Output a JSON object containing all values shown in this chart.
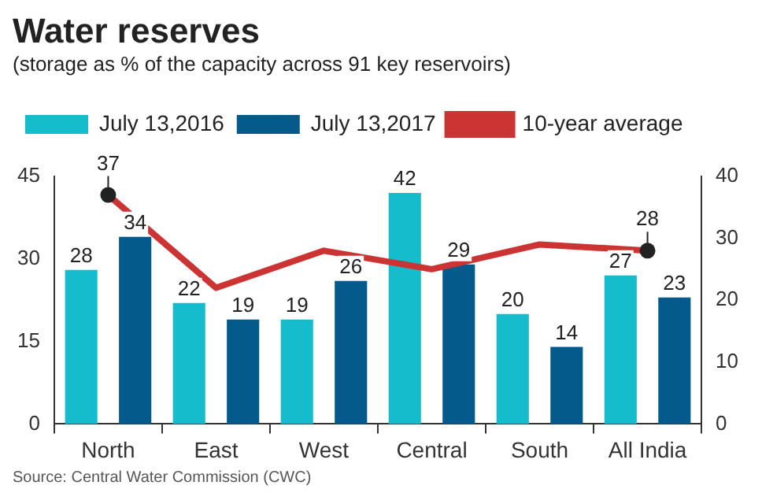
{
  "chart_data": {
    "type": "bar",
    "title": "Water reserves",
    "subtitle": "(storage as % of the capacity across 91 key reservoirs)",
    "categories": [
      "North",
      "East",
      "West",
      "Central",
      "South",
      "All India"
    ],
    "series": [
      {
        "name": "July 13,2016",
        "color": "#14bccc",
        "values": [
          28,
          22,
          19,
          42,
          20,
          27
        ],
        "value_labels": [
          "28",
          "22",
          "19",
          "42",
          "20",
          "27"
        ]
      },
      {
        "name": "July 13,2017",
        "color": "#045a8a",
        "values": [
          34,
          19,
          26,
          29,
          14,
          23
        ],
        "value_labels": [
          "34",
          "19",
          "26",
          "29",
          "14",
          "23"
        ]
      },
      {
        "name": "10-year average",
        "type": "line",
        "axis": "y2",
        "color": "#cc3333",
        "values": [
          37,
          22,
          28,
          25,
          29,
          28
        ],
        "value_labels": [
          "37",
          null,
          null,
          null,
          null,
          "28"
        ]
      }
    ],
    "ylim": [
      0,
      45
    ],
    "yticks": [
      0,
      15,
      30,
      45
    ],
    "y2lim": [
      0,
      40
    ],
    "y2ticks": [
      0,
      10,
      20,
      30,
      40
    ],
    "grid": false,
    "legend": "top left",
    "annotations": [
      "Source: Central Water Commission (CWC)"
    ]
  }
}
